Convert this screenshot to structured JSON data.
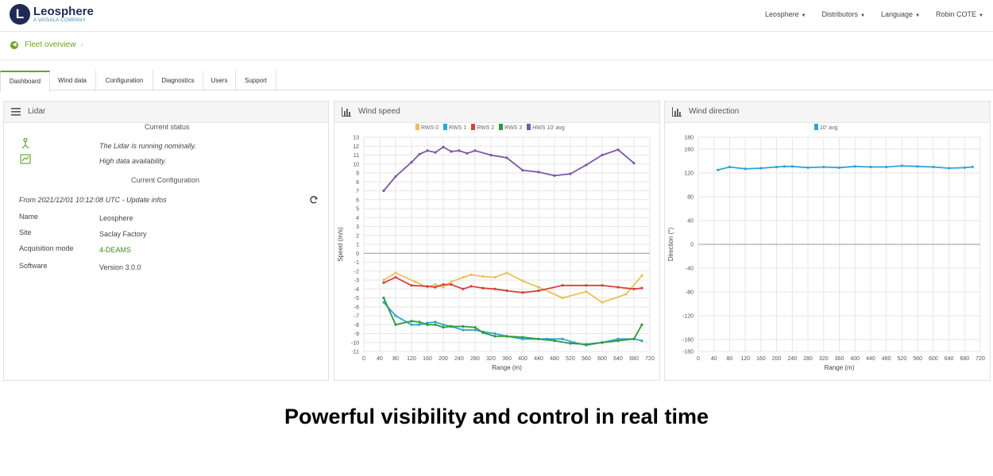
{
  "brand": {
    "name": "Leosphere",
    "tagline": "A VAISALA COMPANY"
  },
  "topnav": [
    "Leosphere",
    "Distributors",
    "Language",
    "Robin COTE"
  ],
  "breadcrumb": {
    "label": "Fleet overview"
  },
  "tabs": [
    "Dashboard",
    "Wind data",
    "Configuration",
    "Diagnostics",
    "Users",
    "Support"
  ],
  "lidar": {
    "title": "Lidar",
    "current_status": "Current status",
    "status1": "The Lidar is running nominally.",
    "status2": "High data availability.",
    "current_config": "Current Configuration",
    "updated": "From 2021/12/01 10:12:08 UTC - Update infos",
    "rows": [
      {
        "label": "Name",
        "value": "Leosphere"
      },
      {
        "label": "Site",
        "value": "Saclay Factory"
      },
      {
        "label": "Acquisition mode",
        "value": "4-DEAMS"
      },
      {
        "label": "Software",
        "value": "Version 3.0.0"
      }
    ]
  },
  "wind_speed": {
    "title": "Wind speed",
    "legend": [
      "RWS 0",
      "RWS 1",
      "RWS 2",
      "RWS 3",
      "HWS 10' avg"
    ]
  },
  "wind_direction": {
    "title": "Wind direction",
    "legend": [
      "10' avg"
    ]
  },
  "caption": "Powerful visibility and control in real time",
  "chart_data": [
    {
      "type": "line",
      "title": "Wind speed",
      "xlabel": "Range (m)",
      "ylabel": "Speed (m/s)",
      "xlim": [
        0,
        720
      ],
      "ylim": [
        -11,
        13
      ],
      "xticks": [
        0,
        40,
        80,
        120,
        160,
        200,
        240,
        280,
        320,
        360,
        400,
        440,
        480,
        520,
        560,
        600,
        640,
        680,
        720
      ],
      "yticks": [
        13,
        12,
        11,
        10,
        9,
        8,
        7,
        6,
        5,
        4,
        3,
        2,
        1,
        0,
        -1,
        -2,
        -3,
        -4,
        -5,
        -6,
        -7,
        -8,
        -9,
        -10,
        -11
      ],
      "grid": true,
      "legend_position": "top",
      "series": [
        {
          "name": "RWS 0",
          "color": "#e9c257",
          "x": [
            50,
            80,
            130,
            160,
            180,
            200,
            220,
            250,
            270,
            300,
            330,
            360,
            400,
            440,
            500,
            560,
            600,
            660,
            700
          ],
          "y": [
            -3.0,
            -2.2,
            -3.2,
            -3.8,
            -3.5,
            -3.8,
            -3.2,
            -2.7,
            -2.4,
            -2.6,
            -2.7,
            -2.2,
            -3.1,
            -3.8,
            -5.0,
            -4.3,
            -5.5,
            -4.6,
            -2.5
          ]
        },
        {
          "name": "RWS 1",
          "color": "#2fa5d5",
          "x": [
            50,
            80,
            120,
            140,
            160,
            180,
            200,
            220,
            250,
            280,
            300,
            330,
            360,
            400,
            460,
            500,
            530,
            560,
            600,
            640,
            680,
            700
          ],
          "y": [
            -5.5,
            -7.0,
            -8.0,
            -8.0,
            -7.8,
            -7.7,
            -8.0,
            -8.2,
            -8.6,
            -8.6,
            -8.8,
            -9.0,
            -9.3,
            -9.6,
            -9.6,
            -9.6,
            -10.0,
            -10.3,
            -10.0,
            -9.6,
            -9.6,
            -9.8
          ]
        },
        {
          "name": "RWS 2",
          "color": "#d6403f",
          "x": [
            50,
            80,
            120,
            160,
            180,
            200,
            220,
            250,
            270,
            300,
            330,
            360,
            400,
            440,
            500,
            560,
            600,
            640,
            680,
            700
          ],
          "y": [
            -3.3,
            -2.7,
            -3.6,
            -3.7,
            -3.8,
            -3.5,
            -3.5,
            -4.0,
            -3.7,
            -3.9,
            -4.0,
            -4.2,
            -4.4,
            -4.2,
            -3.6,
            -3.6,
            -3.6,
            -3.8,
            -4.0,
            -3.9
          ]
        },
        {
          "name": "RWS 3",
          "color": "#2e9a3d",
          "x": [
            50,
            80,
            120,
            140,
            160,
            180,
            200,
            220,
            250,
            280,
            300,
            330,
            360,
            400,
            440,
            480,
            520,
            560,
            600,
            640,
            680,
            700
          ],
          "y": [
            -5.0,
            -8.0,
            -7.6,
            -7.7,
            -8.0,
            -8.0,
            -8.3,
            -8.2,
            -8.2,
            -8.3,
            -8.9,
            -9.3,
            -9.3,
            -9.4,
            -9.6,
            -9.8,
            -10.1,
            -10.2,
            -10.0,
            -9.8,
            -9.6,
            -8.0
          ]
        },
        {
          "name": "HWS 10' avg",
          "color": "#7b57a8",
          "x": [
            50,
            80,
            120,
            140,
            160,
            180,
            200,
            220,
            240,
            260,
            280,
            320,
            360,
            400,
            440,
            480,
            520,
            560,
            600,
            640,
            680
          ],
          "y": [
            7.0,
            8.6,
            10.2,
            11.1,
            11.5,
            11.3,
            11.9,
            11.4,
            11.5,
            11.2,
            11.5,
            11.0,
            10.7,
            9.3,
            9.1,
            8.7,
            8.9,
            9.9,
            11.0,
            11.6,
            10.1
          ]
        }
      ]
    },
    {
      "type": "line",
      "title": "Wind direction",
      "xlabel": "Range (m)",
      "ylabel": "Direction (°)",
      "xlim": [
        0,
        720
      ],
      "ylim": [
        -180,
        180
      ],
      "xticks": [
        0,
        40,
        80,
        120,
        160,
        200,
        240,
        280,
        320,
        360,
        400,
        440,
        480,
        520,
        560,
        600,
        640,
        680,
        720
      ],
      "yticks": [
        180,
        160,
        120,
        80,
        40,
        0,
        -40,
        -80,
        -120,
        -160,
        -180
      ],
      "grid": true,
      "legend_position": "top",
      "series": [
        {
          "name": "10' avg",
          "color": "#2fa5d5",
          "x": [
            50,
            80,
            120,
            160,
            200,
            220,
            240,
            280,
            320,
            360,
            400,
            440,
            480,
            520,
            560,
            600,
            640,
            680,
            700
          ],
          "y": [
            125,
            130,
            127,
            128,
            130,
            131,
            131,
            129,
            130,
            129,
            131,
            130,
            130,
            132,
            131,
            130,
            128,
            129,
            130
          ]
        }
      ]
    }
  ]
}
